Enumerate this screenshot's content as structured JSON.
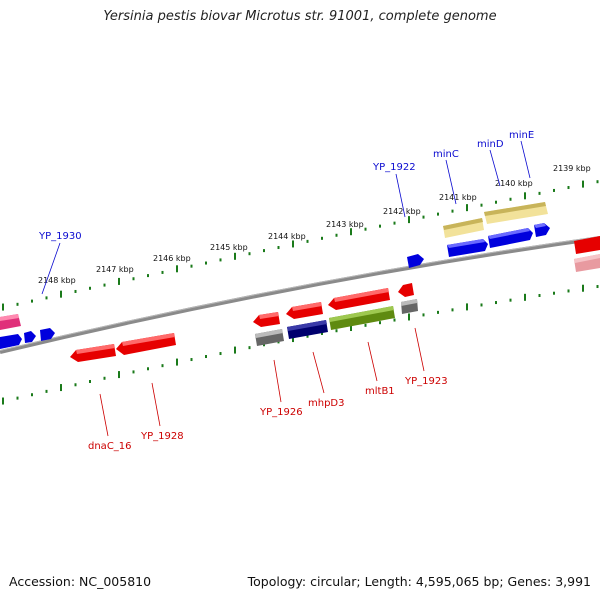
{
  "header": {
    "title": "Yersinia pestis biovar Microtus str. 91001, complete genome"
  },
  "footer": {
    "accession": "Accession: NC_005810",
    "summary": "Topology: circular; Length: 4,595,065 bp; Genes: 3,991"
  },
  "colors": {
    "backbone": "#808080",
    "tick": "#1a7a1a",
    "top_label": "#0b0bd0",
    "bottom_label": "#cc0000",
    "gene_red": "#e60000",
    "gene_blue": "#0000dd",
    "gene_navy": "#00006e",
    "gene_olive": "#5f8a10",
    "gene_khaki": "#c8b45a",
    "gene_lightyellow": "#f2e29a",
    "gene_gray": "#666666",
    "gene_magenta": "#e0307a",
    "gene_pink": "#e89aa0"
  },
  "scale": {
    "tick_labels": [
      "2139 kbp",
      "2140 kbp",
      "2141 kbp",
      "2142 kbp",
      "2143 kbp",
      "2144 kbp",
      "2145 kbp",
      "2146 kbp",
      "2147 kbp",
      "2148 kbp"
    ]
  },
  "top_strand_labels": [
    "minE",
    "minD",
    "minC",
    "YP_1922",
    "YP_1930"
  ],
  "bottom_strand_labels": [
    "YP_1923",
    "mltB1",
    "mhpD3",
    "YP_1926",
    "YP_1928",
    "dnaC_16"
  ]
}
